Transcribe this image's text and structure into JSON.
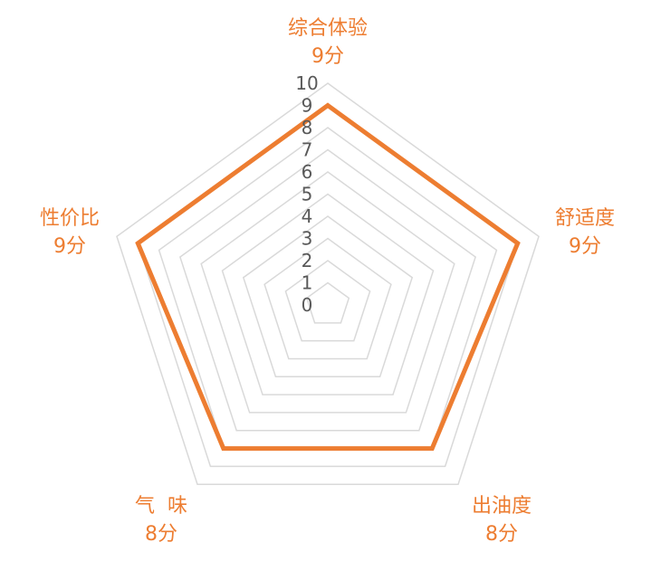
{
  "chart_data": {
    "type": "radar",
    "title": "",
    "categories": [
      {
        "name": "综合体验",
        "score_label": "9分"
      },
      {
        "name": "舒适度",
        "score_label": "9分"
      },
      {
        "name": "出油度",
        "score_label": "8分"
      },
      {
        "name": "气  味",
        "score_label": "8分"
      },
      {
        "name": "性价比",
        "score_label": "9分"
      }
    ],
    "series": [
      {
        "values": [
          9,
          9,
          8,
          8,
          9
        ]
      }
    ],
    "rlim": [
      0,
      10
    ],
    "ticks": [
      "0",
      "1",
      "2",
      "3",
      "4",
      "5",
      "6",
      "7",
      "8",
      "9",
      "10"
    ],
    "grid": true,
    "colors": {
      "series": "#ED7D31",
      "grid": "#D9D9D9",
      "label": "#ED7D31",
      "tick": "#595959"
    }
  }
}
